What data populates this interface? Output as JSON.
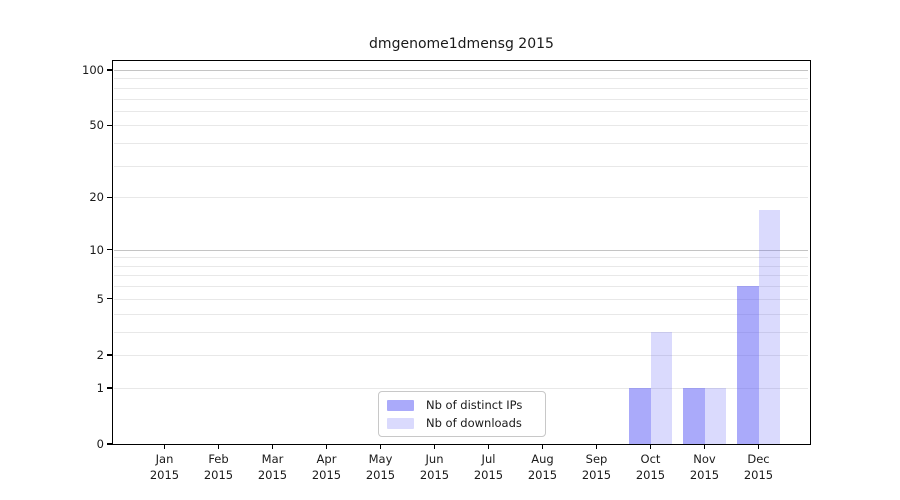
{
  "chart_data": {
    "type": "bar",
    "title": "dmgenome1dmensg 2015",
    "categories": [
      "Jan",
      "Feb",
      "Mar",
      "Apr",
      "May",
      "Jun",
      "Jul",
      "Aug",
      "Sep",
      "Oct",
      "Nov",
      "Dec"
    ],
    "x_tick_year": "2015",
    "series": [
      {
        "name": "Nb of distinct IPs",
        "color": "rgba(85,85,245,0.50)",
        "rendered_color": "#aaaaf9",
        "values": [
          0,
          0,
          0,
          0,
          0,
          0,
          0,
          0,
          0,
          1,
          1,
          6
        ]
      },
      {
        "name": "Nb of downloads",
        "color": "rgba(85,85,245,0.22)",
        "rendered_color": "#d9d9fa",
        "values": [
          0,
          0,
          0,
          0,
          0,
          0,
          0,
          0,
          0,
          3,
          1,
          17
        ]
      }
    ],
    "y_axis": {
      "scale": "log1p",
      "tick_labels": [
        0,
        1,
        2,
        5,
        10,
        20,
        50,
        100
      ],
      "major_gridlines": [
        10,
        100
      ],
      "minor_gridlines": [
        1,
        2,
        3,
        4,
        5,
        6,
        7,
        8,
        9,
        20,
        30,
        40,
        50,
        60,
        70,
        80,
        90
      ],
      "range_bottom": 0,
      "top_label": 100
    },
    "legend": {
      "position": "lower center",
      "entries": [
        "Nb of distinct IPs",
        "Nb of downloads"
      ]
    },
    "colors": {
      "major_grid": "#c4c4c4",
      "minor_grid": "#e8e8e8",
      "spine": "#000000",
      "text": "#1a1a1a",
      "background": "#ffffff"
    },
    "grid": true
  }
}
